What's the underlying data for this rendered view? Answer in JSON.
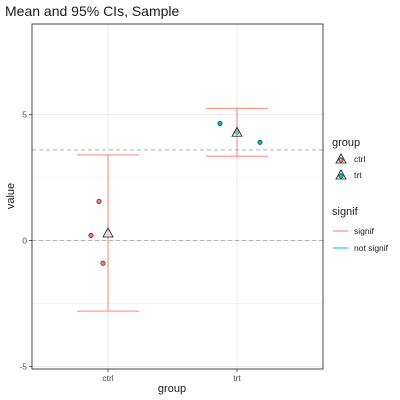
{
  "chart_data": {
    "type": "scatter",
    "title": "Mean and 95% CIs, Sample",
    "xlabel": "group",
    "ylabel": "value",
    "categories": [
      "ctrl",
      "trt"
    ],
    "ylim": [
      -5.1,
      8.6
    ],
    "yticks": [
      -5,
      0,
      5
    ],
    "grid": true,
    "points": [
      {
        "group": "ctrl",
        "value": 1.55
      },
      {
        "group": "ctrl",
        "value": 0.2
      },
      {
        "group": "ctrl",
        "value": -0.9
      },
      {
        "group": "trt",
        "value": 4.65
      },
      {
        "group": "trt",
        "value": 4.3
      },
      {
        "group": "trt",
        "value": 3.9
      }
    ],
    "means": [
      {
        "group": "ctrl",
        "mean": 0.3,
        "ci_low": -2.8,
        "ci_high": 3.4,
        "signif": "signif"
      },
      {
        "group": "trt",
        "mean": 4.3,
        "ci_low": 3.35,
        "ci_high": 5.25,
        "signif": "signif"
      }
    ],
    "reference_lines": [
      {
        "y": 3.6,
        "style": "dashed"
      },
      {
        "y": 0,
        "style": "dashed"
      }
    ],
    "legend": {
      "placement": "right",
      "group_title": "group",
      "group_entries": [
        {
          "label": "ctrl",
          "color": "#F8766D"
        },
        {
          "label": "trt",
          "color": "#00BFC4"
        }
      ],
      "signif_title": "signif",
      "signif_entries": [
        {
          "label": "signif",
          "color": "#F8766D"
        },
        {
          "label": "not signif",
          "color": "#00BFC4"
        }
      ]
    }
  }
}
